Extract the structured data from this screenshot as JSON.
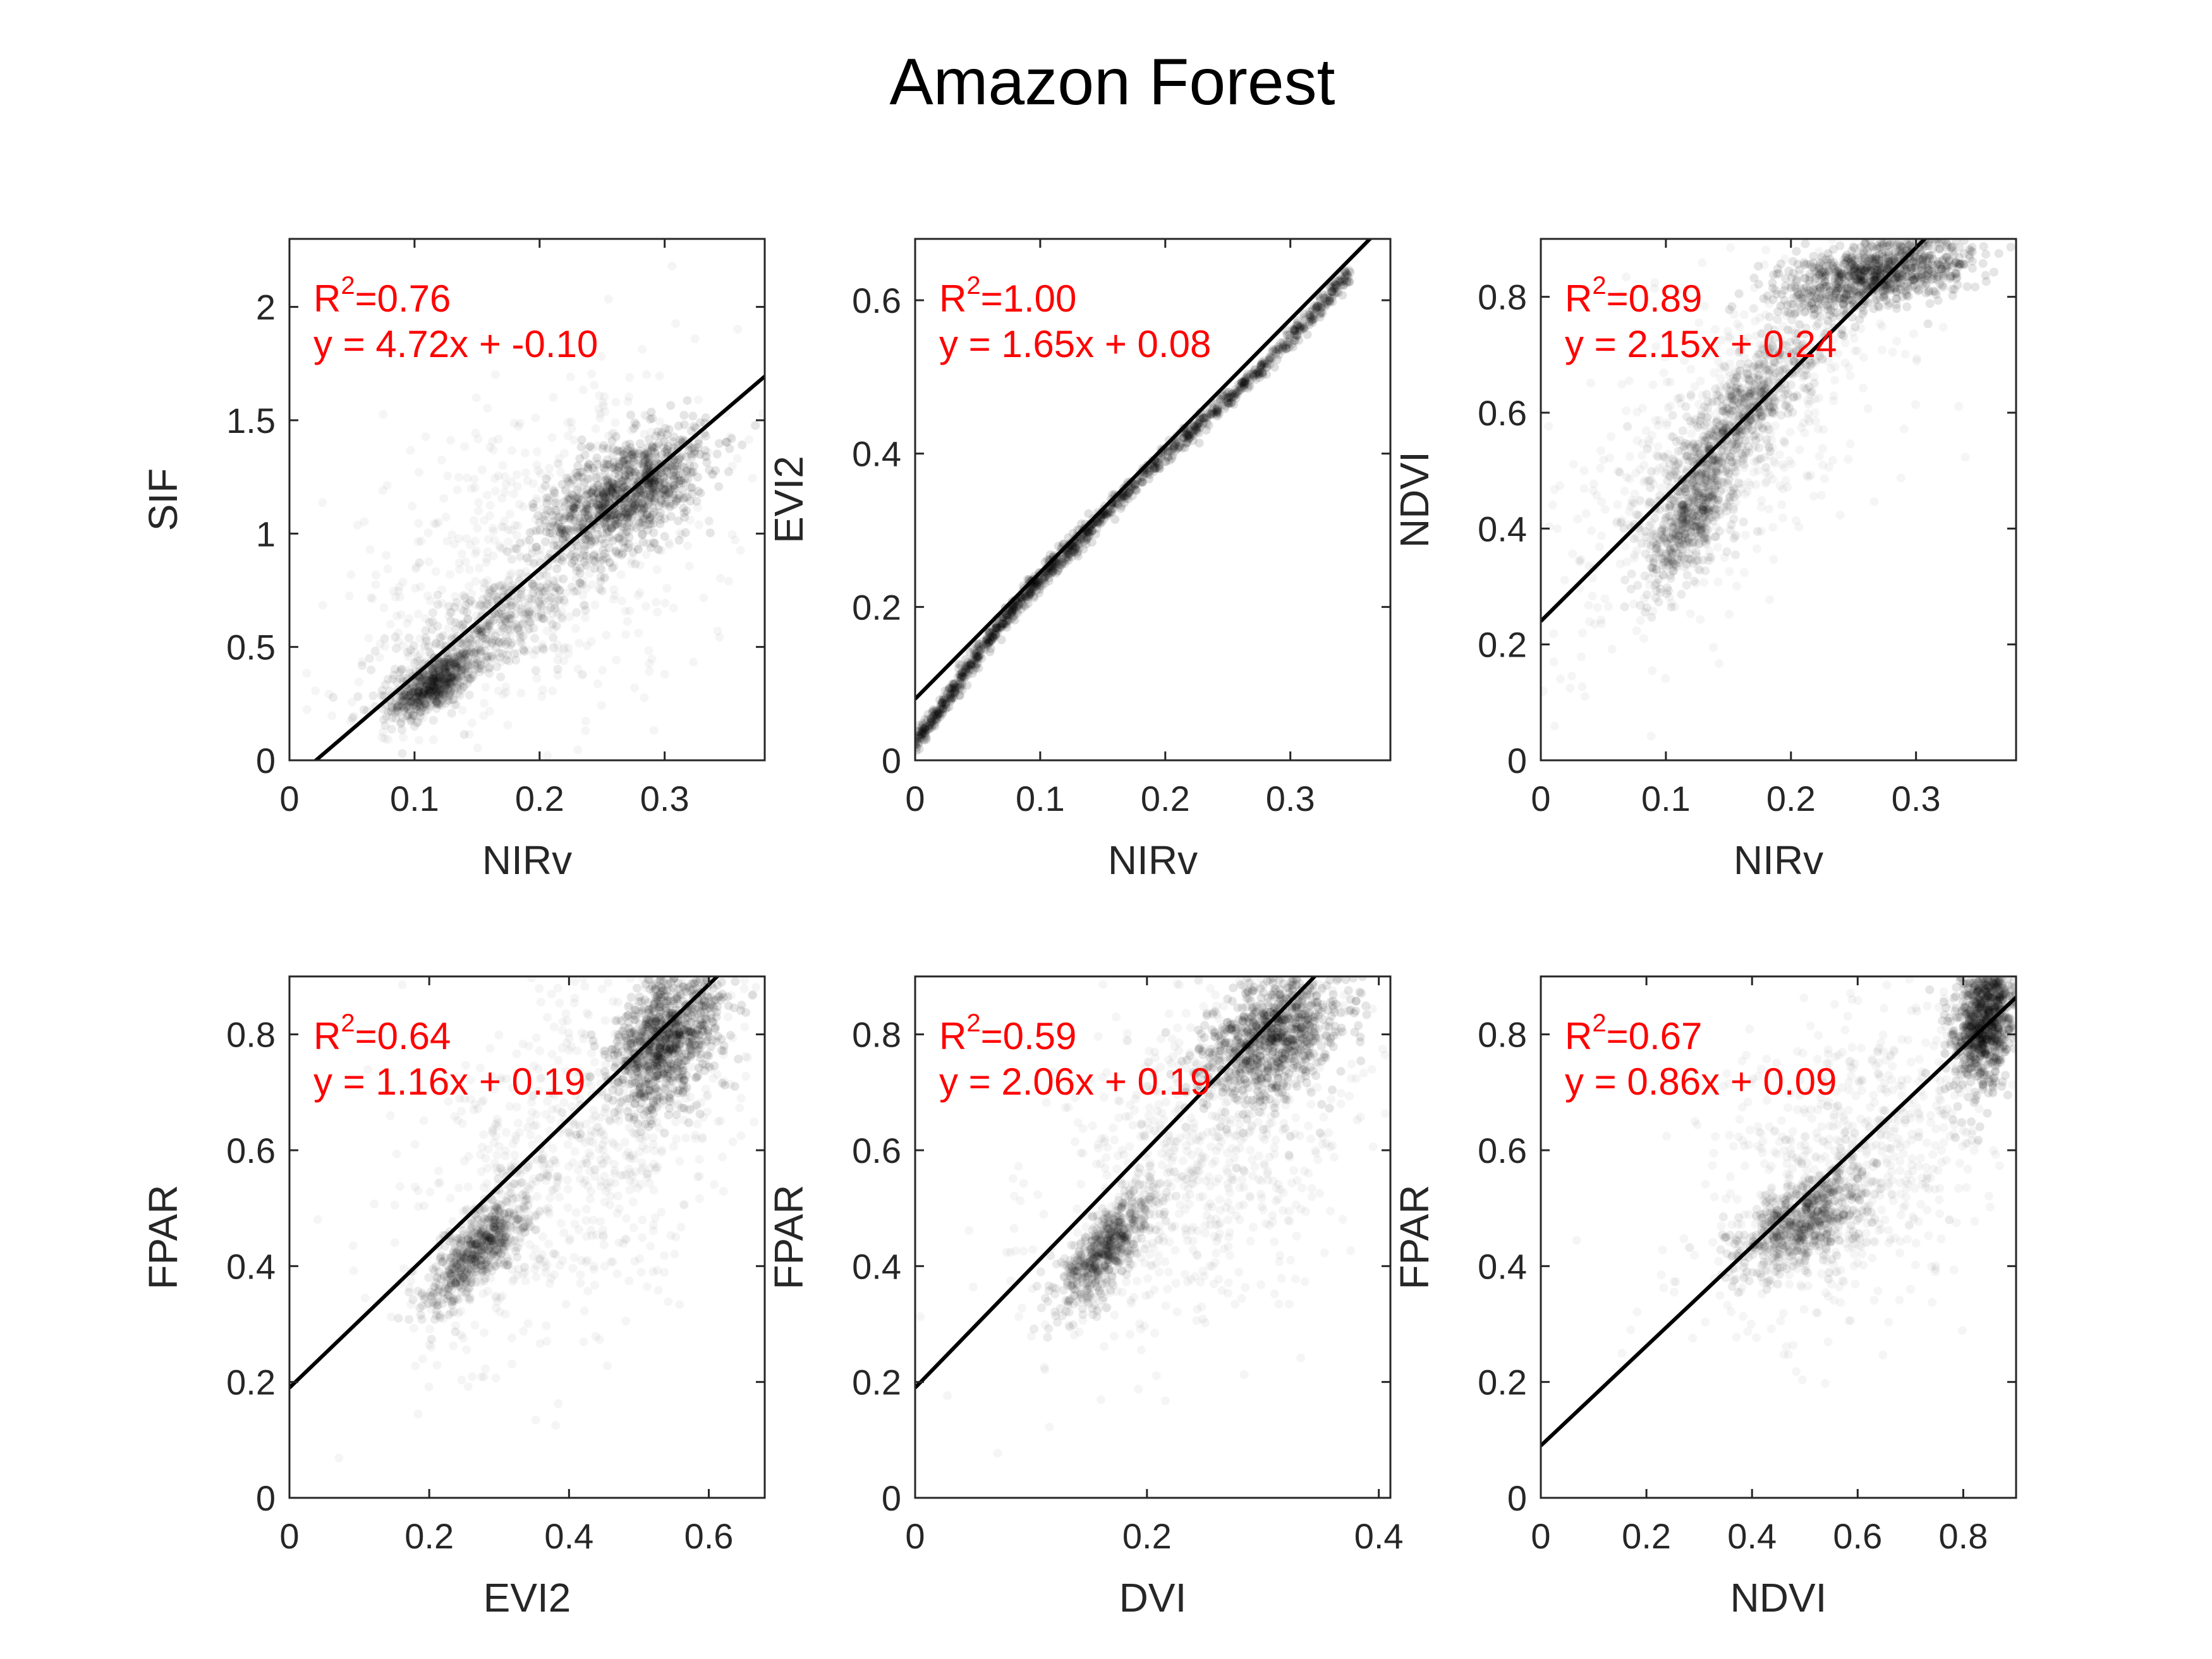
{
  "figure": {
    "title": "Amazon Forest"
  },
  "chart_data": [
    {
      "type": "scatter",
      "xlabel": "NIRv",
      "ylabel": "SIF",
      "xlim": [
        0,
        0.38
      ],
      "ylim": [
        0,
        2.3
      ],
      "xticks": [
        0,
        0.1,
        0.2,
        0.3
      ],
      "xticklabels": [
        "0",
        "0.1",
        "0.2",
        "0.3"
      ],
      "yticks": [
        0,
        0.5,
        1,
        1.5,
        2
      ],
      "yticklabels": [
        "0",
        "0.5",
        "1",
        "1.5",
        "2"
      ],
      "r2_label": "R",
      "r2_value": "=0.76",
      "equation": "y = 4.72x + -0.10",
      "fit": {
        "slope": 4.72,
        "intercept": -0.1
      },
      "clusters": [
        {
          "x": 0.115,
          "y": 0.33,
          "sx": 0.016,
          "sy": 0.07,
          "rho": 0.6,
          "n": 600
        },
        {
          "x": 0.16,
          "y": 0.58,
          "sx": 0.04,
          "sy": 0.15,
          "rho": 0.7,
          "n": 380
        },
        {
          "x": 0.27,
          "y": 1.18,
          "sx": 0.032,
          "sy": 0.14,
          "rho": 0.55,
          "n": 950
        },
        {
          "x": 0.2,
          "y": 0.9,
          "sx": 0.08,
          "sy": 0.4,
          "rho": 0.4,
          "n": 650
        }
      ],
      "grid": false
    },
    {
      "type": "scatter",
      "xlabel": "NIRv",
      "ylabel": "EVI2",
      "xlim": [
        0,
        0.38
      ],
      "ylim": [
        0,
        0.68
      ],
      "xticks": [
        0,
        0.1,
        0.2,
        0.3
      ],
      "xticklabels": [
        "0",
        "0.1",
        "0.2",
        "0.3"
      ],
      "yticks": [
        0,
        0.2,
        0.4,
        0.6
      ],
      "yticklabels": [
        "0",
        "0.2",
        "0.4",
        "0.6"
      ],
      "r2_label": "R",
      "r2_value": "=1.00",
      "equation": "y = 1.65x + 0.08",
      "fit": {
        "slope": 1.65,
        "intercept": 0.08
      },
      "curve": [
        [
          0,
          0.02
        ],
        [
          0.03,
          0.09
        ],
        [
          0.06,
          0.16
        ],
        [
          0.09,
          0.22
        ],
        [
          0.12,
          0.27
        ],
        [
          0.15,
          0.32
        ],
        [
          0.2,
          0.4
        ],
        [
          0.25,
          0.47
        ],
        [
          0.3,
          0.55
        ],
        [
          0.35,
          0.64
        ]
      ],
      "grid": false
    },
    {
      "type": "scatter",
      "xlabel": "NIRv",
      "ylabel": "NDVI",
      "xlim": [
        0,
        0.38
      ],
      "ylim": [
        0,
        0.9
      ],
      "xticks": [
        0,
        0.1,
        0.2,
        0.3
      ],
      "xticklabels": [
        "0",
        "0.1",
        "0.2",
        "0.3"
      ],
      "yticks": [
        0,
        0.2,
        0.4,
        0.6,
        0.8
      ],
      "yticklabels": [
        "0",
        "0.2",
        "0.4",
        "0.6",
        "0.8"
      ],
      "r2_label": "R",
      "r2_value": "=0.89",
      "equation": "y = 2.15x + 0.24",
      "fit": {
        "slope": 2.15,
        "intercept": 0.24
      },
      "clusters": [
        {
          "x": 0.12,
          "y": 0.42,
          "sx": 0.018,
          "sy": 0.06,
          "rho": 0.7,
          "n": 500
        },
        {
          "x": 0.16,
          "y": 0.6,
          "sx": 0.03,
          "sy": 0.08,
          "rho": 0.8,
          "n": 600
        },
        {
          "x": 0.27,
          "y": 0.84,
          "sx": 0.04,
          "sy": 0.035,
          "rho": 0.5,
          "n": 900
        },
        {
          "x": 0.15,
          "y": 0.55,
          "sx": 0.07,
          "sy": 0.18,
          "rho": 0.7,
          "n": 600
        }
      ],
      "grid": false
    },
    {
      "type": "scatter",
      "xlabel": "EVI2",
      "ylabel": "FPAR",
      "xlim": [
        0,
        0.68
      ],
      "ylim": [
        0,
        0.9
      ],
      "xticks": [
        0,
        0.2,
        0.4,
        0.6
      ],
      "xticklabels": [
        "0",
        "0.2",
        "0.4",
        "0.6"
      ],
      "yticks": [
        0,
        0.2,
        0.4,
        0.6,
        0.8
      ],
      "yticklabels": [
        "0",
        "0.2",
        "0.4",
        "0.6",
        "0.8"
      ],
      "r2_label": "R",
      "r2_value": "=0.64",
      "equation": "y = 1.16x + 0.19",
      "fit": {
        "slope": 1.16,
        "intercept": 0.19
      },
      "clusters": [
        {
          "x": 0.27,
          "y": 0.43,
          "sx": 0.035,
          "sy": 0.05,
          "rho": 0.75,
          "n": 600
        },
        {
          "x": 0.54,
          "y": 0.79,
          "sx": 0.04,
          "sy": 0.06,
          "rho": 0.4,
          "n": 900
        },
        {
          "x": 0.42,
          "y": 0.6,
          "sx": 0.12,
          "sy": 0.17,
          "rho": 0.5,
          "n": 800
        }
      ],
      "grid": false
    },
    {
      "type": "scatter",
      "xlabel": "DVI",
      "ylabel": "FPAR",
      "xlim": [
        0,
        0.41
      ],
      "ylim": [
        0,
        0.9
      ],
      "xticks": [
        0,
        0.2,
        0.4
      ],
      "xticklabels": [
        "0",
        "0.2",
        "0.4"
      ],
      "yticks": [
        0,
        0.2,
        0.4,
        0.6,
        0.8
      ],
      "yticklabels": [
        "0",
        "0.2",
        "0.4",
        "0.6",
        "0.8"
      ],
      "r2_label": "R",
      "r2_value": "=0.59",
      "equation": "y = 2.06x + 0.19",
      "fit": {
        "slope": 2.06,
        "intercept": 0.19
      },
      "clusters": [
        {
          "x": 0.165,
          "y": 0.43,
          "sx": 0.02,
          "sy": 0.05,
          "rho": 0.75,
          "n": 600
        },
        {
          "x": 0.31,
          "y": 0.8,
          "sx": 0.03,
          "sy": 0.06,
          "rho": 0.4,
          "n": 900
        },
        {
          "x": 0.25,
          "y": 0.6,
          "sx": 0.07,
          "sy": 0.17,
          "rho": 0.5,
          "n": 800
        }
      ],
      "grid": false
    },
    {
      "type": "scatter",
      "xlabel": "NDVI",
      "ylabel": "FPAR",
      "xlim": [
        0,
        0.9
      ],
      "ylim": [
        0,
        0.9
      ],
      "xticks": [
        0,
        0.2,
        0.4,
        0.6,
        0.8
      ],
      "xticklabels": [
        "0",
        "0.2",
        "0.4",
        "0.6",
        "0.8"
      ],
      "yticks": [
        0,
        0.2,
        0.4,
        0.6,
        0.8
      ],
      "yticklabels": [
        "0",
        "0.2",
        "0.4",
        "0.6",
        "0.8"
      ],
      "r2_label": "R",
      "r2_value": "=0.67",
      "equation": "y = 0.86x + 0.09",
      "fit": {
        "slope": 0.86,
        "intercept": 0.09
      },
      "clusters": [
        {
          "x": 0.5,
          "y": 0.48,
          "sx": 0.06,
          "sy": 0.045,
          "rho": 0.6,
          "n": 600
        },
        {
          "x": 0.84,
          "y": 0.82,
          "sx": 0.03,
          "sy": 0.06,
          "rho": 0.3,
          "n": 900
        },
        {
          "x": 0.6,
          "y": 0.58,
          "sx": 0.15,
          "sy": 0.15,
          "rho": 0.5,
          "n": 800
        }
      ],
      "grid": false
    }
  ],
  "colors": {
    "annotation": "#ff0000",
    "fit_line": "#000000",
    "points": "#000000",
    "axis": "#262626"
  }
}
